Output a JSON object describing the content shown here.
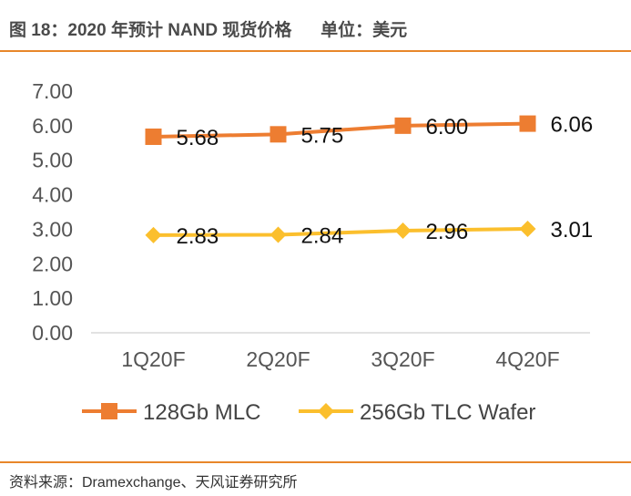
{
  "header": {
    "title": "图 18：2020 年预计 NAND 现货价格      单位：美元"
  },
  "source": "资料来源：Dramexchange、天风证券研究所",
  "chart_data": {
    "type": "line",
    "title": "",
    "xlabel": "",
    "ylabel": "",
    "categories": [
      "1Q20F",
      "2Q20F",
      "3Q20F",
      "4Q20F"
    ],
    "ylim": [
      0,
      7
    ],
    "yticks": [
      "0.00",
      "1.00",
      "2.00",
      "3.00",
      "4.00",
      "5.00",
      "6.00",
      "7.00"
    ],
    "grid": false,
    "legend": "bottom",
    "series": [
      {
        "name": "128Gb MLC",
        "values": [
          5.68,
          5.75,
          6.0,
          6.06
        ],
        "labels": [
          "5.68",
          "5.75",
          "6.00",
          "6.06"
        ],
        "color": "#ed7d31",
        "marker": "square"
      },
      {
        "name": "256Gb TLC Wafer",
        "values": [
          2.83,
          2.84,
          2.96,
          3.01
        ],
        "labels": [
          "2.83",
          "2.84",
          "2.96",
          "3.01"
        ],
        "color": "#fbbf2d",
        "marker": "diamond"
      }
    ]
  }
}
